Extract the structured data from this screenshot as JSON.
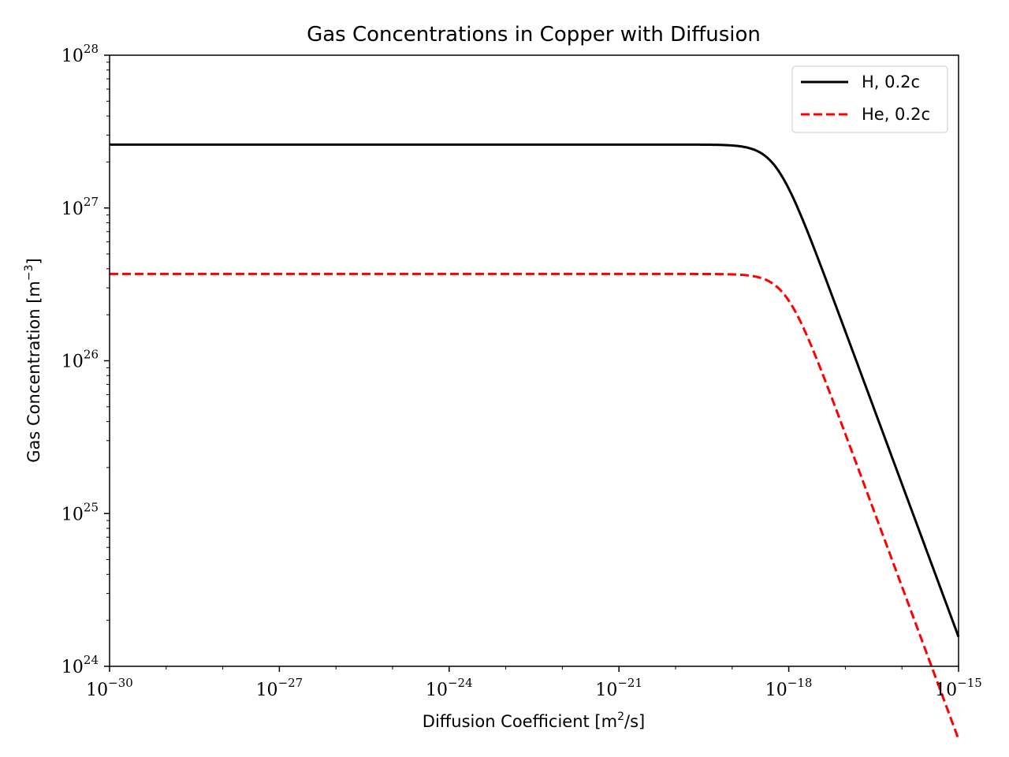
{
  "chart_data": {
    "type": "line",
    "title": "Gas Concentrations in Copper with Diffusion",
    "xlabel": {
      "prefix": "Diffusion Coefficient [m",
      "sup": "2",
      "suffix": "/s]"
    },
    "ylabel": {
      "prefix": "Gas Concentration [m",
      "sup": "−3",
      "suffix": "]"
    },
    "xscale": "log",
    "yscale": "log",
    "xlim_exp": [
      -30,
      -15
    ],
    "ylim_exp": [
      24,
      28
    ],
    "x_ticks": [
      {
        "base": "10",
        "exp": "−30",
        "value_exp": -30
      },
      {
        "base": "10",
        "exp": "−27",
        "value_exp": -27
      },
      {
        "base": "10",
        "exp": "−24",
        "value_exp": -24
      },
      {
        "base": "10",
        "exp": "−21",
        "value_exp": -21
      },
      {
        "base": "10",
        "exp": "−18",
        "value_exp": -18
      },
      {
        "base": "10",
        "exp": "−15",
        "value_exp": -15
      }
    ],
    "y_ticks": [
      {
        "base": "10",
        "exp": "24",
        "value_exp": 24
      },
      {
        "base": "10",
        "exp": "25",
        "value_exp": 25
      },
      {
        "base": "10",
        "exp": "26",
        "value_exp": 26
      },
      {
        "base": "10",
        "exp": "27",
        "value_exp": 27
      },
      {
        "base": "10",
        "exp": "28",
        "value_exp": 28
      }
    ],
    "legend_position": "top-right",
    "series": [
      {
        "name": "H, 0.2c",
        "color": "#000000",
        "dash": "solid",
        "plateau": 2.6e+27,
        "knee_D": 6e-19
      },
      {
        "name": "He, 0.2c",
        "color": "#ff0000",
        "dash": "dashed",
        "plateau": 3.7e+26,
        "knee_D": 9e-19
      }
    ],
    "model": "C(D) = plateau / sqrt(1 + (D / knee_D)^2)"
  }
}
